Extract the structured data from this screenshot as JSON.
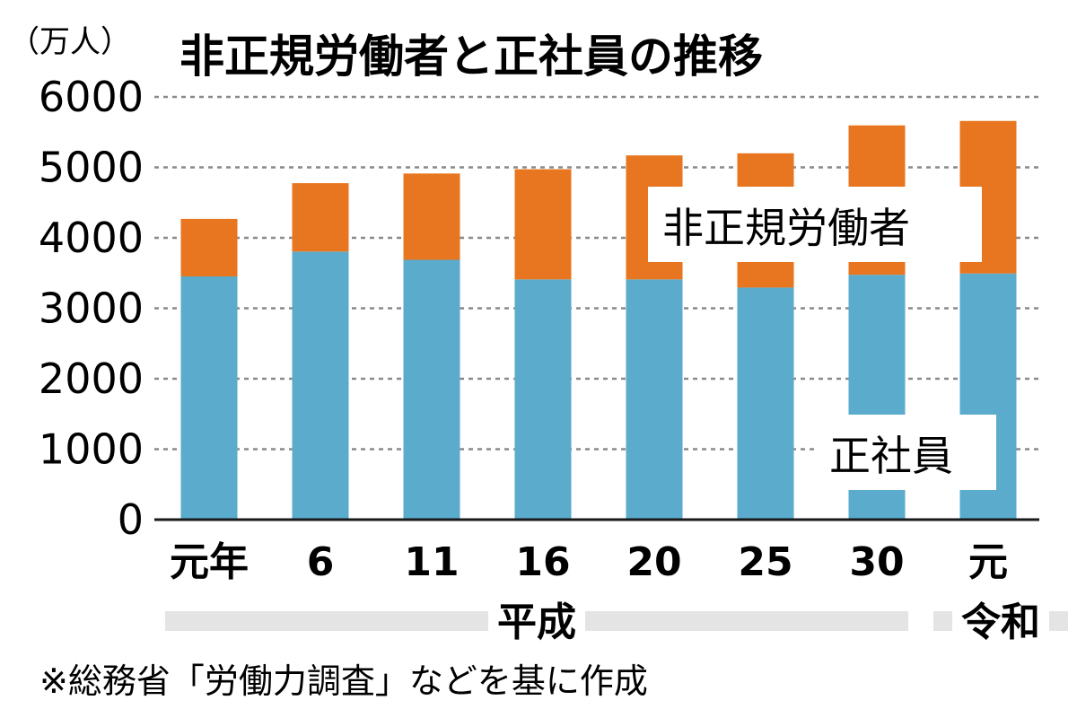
{
  "chart_data": {
    "type": "bar",
    "stacked": true,
    "title": "非正規労働者と正社員の推移",
    "unit_label": "（万人）",
    "categories": [
      "元年",
      "6",
      "11",
      "16",
      "20",
      "25",
      "30",
      "元"
    ],
    "era_labels": [
      {
        "label": "平成",
        "from": 0,
        "to": 6
      },
      {
        "label": "令和",
        "from": 7,
        "to": 7
      }
    ],
    "series": [
      {
        "name": "正社員",
        "values": [
          3452,
          3805,
          3688,
          3410,
          3410,
          3294,
          3476,
          3494
        ]
      },
      {
        "name": "非正規労働者",
        "values": [
          817,
          971,
          1225,
          1564,
          1760,
          1906,
          2120,
          2165
        ]
      }
    ],
    "ylim": [
      0,
      6000
    ],
    "yticks": [
      0,
      1000,
      2000,
      3000,
      4000,
      5000,
      6000
    ],
    "grid": true,
    "source": "※総務省「労働力調査」などを基に作成",
    "colors": {
      "regular": "#5aabcc",
      "nonregular": "#e8751f",
      "grid": "#8a8a8a",
      "era_band": "#e4e4e4"
    }
  }
}
